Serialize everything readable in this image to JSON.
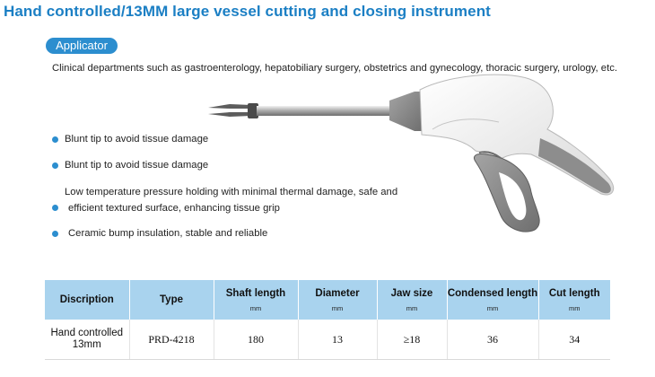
{
  "title": "Hand controlled/13MM large vessel cutting and closing instrument",
  "badge": "Applicator",
  "departments": "Clinical departments such as gastroenterology, hepatobiliary surgery, obstetrics and gynecology, thoracic surgery, urology, etc.",
  "features": [
    "Blunt tip to avoid tissue damage",
    "Blunt tip to avoid tissue damage",
    "Low temperature pressure holding with minimal thermal damage, safe and",
    "efficient textured surface, enhancing tissue grip",
    "Ceramic bump insulation, stable and reliable"
  ],
  "colors": {
    "title": "#1b7fc4",
    "accent": "#2c8ecf",
    "table_header": "#a9d3ee"
  },
  "table": {
    "headers": [
      {
        "label": "Discription",
        "unit": ""
      },
      {
        "label": "Type",
        "unit": ""
      },
      {
        "label": "Shaft length",
        "unit": "mm"
      },
      {
        "label": "Diameter",
        "unit": "mm"
      },
      {
        "label": "Jaw size",
        "unit": "mm"
      },
      {
        "label": "Condensed length",
        "unit": "mm"
      },
      {
        "label": "Cut length",
        "unit": "mm"
      }
    ],
    "row": [
      "Hand controlled 13mm",
      "PRD-4218",
      "180",
      "13",
      "≥18",
      "36",
      "34"
    ]
  }
}
